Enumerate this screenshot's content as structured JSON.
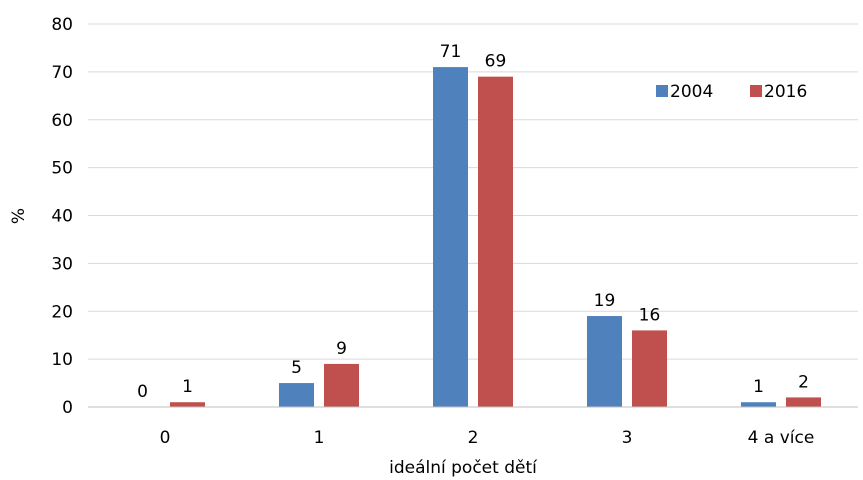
{
  "chart_data": {
    "type": "bar",
    "title": "",
    "xlabel": "ideální počet dětí",
    "ylabel": "%",
    "ylim": [
      0,
      80
    ],
    "yticks": [
      0,
      10,
      20,
      30,
      40,
      50,
      60,
      70,
      80
    ],
    "grid": true,
    "legend_position": "top-right",
    "categories": [
      "0",
      "1",
      "2",
      "3",
      "4 a více"
    ],
    "series": [
      {
        "name": "2004",
        "color": "#4F81BD",
        "values": [
          0,
          5,
          71,
          19,
          1
        ]
      },
      {
        "name": "2016",
        "color": "#C0504D",
        "values": [
          1,
          9,
          69,
          16,
          2
        ]
      }
    ]
  }
}
